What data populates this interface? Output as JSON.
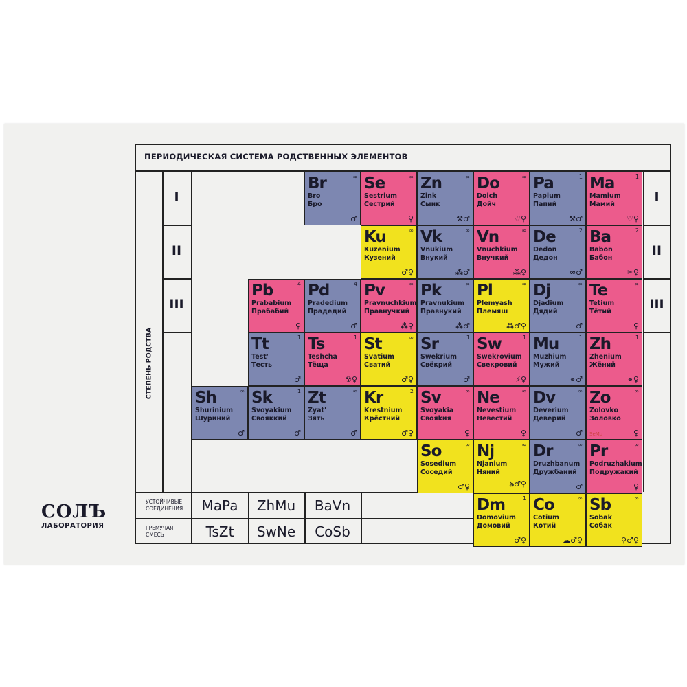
{
  "title": "ПЕРИОДИЧЕСКАЯ СИСТЕМА РОДСТВЕННЫХ ЭЛЕМЕНТОВ",
  "degree_label": "СТЕПЕНЬ РОДСТВА",
  "roman": [
    "I",
    "II",
    "III"
  ],
  "colors": {
    "blue": "#7d87b1",
    "pink": "#ec5b8c",
    "yellow": "#f1e21e"
  },
  "elements": [
    {
      "sym": "Br",
      "lat": "Bro",
      "cyr": "Бро",
      "num": "∞",
      "color": "blue",
      "row": 0,
      "col": 2,
      "icons": "♂"
    },
    {
      "sym": "Se",
      "lat": "Sestrium",
      "cyr": "Сестрий",
      "num": "∞",
      "color": "pink",
      "row": 0,
      "col": 3,
      "icons": "♀"
    },
    {
      "sym": "Zn",
      "lat": "Zink",
      "cyr": "Сынк",
      "num": "∞",
      "color": "blue",
      "row": 0,
      "col": 4,
      "icons": "⚒♂"
    },
    {
      "sym": "Do",
      "lat": "Doich",
      "cyr": "Дойч",
      "num": "∞",
      "color": "pink",
      "row": 0,
      "col": 5,
      "icons": "♡♀"
    },
    {
      "sym": "Pa",
      "lat": "Papium",
      "cyr": "Папий",
      "num": "1",
      "color": "blue",
      "row": 0,
      "col": 6,
      "icons": "⚒♂"
    },
    {
      "sym": "Ma",
      "lat": "Mamium",
      "cyr": "Мамий",
      "num": "1",
      "color": "pink",
      "row": 0,
      "col": 7,
      "icons": "♡♀"
    },
    {
      "sym": "Ku",
      "lat": "Kuzenium",
      "cyr": "Кузений",
      "num": "∞",
      "color": "yellow",
      "row": 1,
      "col": 3,
      "icons": "♂♀"
    },
    {
      "sym": "Vk",
      "lat": "Vnukium",
      "cyr": "Внукий",
      "num": "∞",
      "color": "blue",
      "row": 1,
      "col": 4,
      "icons": "⁂♂"
    },
    {
      "sym": "Vn",
      "lat": "Vnuchkium",
      "cyr": "Внучкий",
      "num": "∞",
      "color": "pink",
      "row": 1,
      "col": 5,
      "icons": "⁂♀"
    },
    {
      "sym": "De",
      "lat": "Dedon",
      "cyr": "Дедон",
      "num": "2",
      "color": "blue",
      "row": 1,
      "col": 6,
      "icons": "∞♂"
    },
    {
      "sym": "Ba",
      "lat": "Babon",
      "cyr": "Бабон",
      "num": "2",
      "color": "pink",
      "row": 1,
      "col": 7,
      "icons": "✂♀"
    },
    {
      "sym": "Pb",
      "lat": "Prababium",
      "cyr": "Прабабий",
      "num": "4",
      "color": "pink",
      "row": 2,
      "col": 1,
      "icons": "♀"
    },
    {
      "sym": "Pd",
      "lat": "Pradedium",
      "cyr": "Прадедий",
      "num": "4",
      "color": "blue",
      "row": 2,
      "col": 2,
      "icons": "♂"
    },
    {
      "sym": "Pv",
      "lat": "Pravnuchkium",
      "cyr": "Правнучкий",
      "num": "∞",
      "color": "pink",
      "row": 2,
      "col": 3,
      "icons": "⁂♀"
    },
    {
      "sym": "Pk",
      "lat": "Pravnukium",
      "cyr": "Правнукий",
      "num": "∞",
      "color": "blue",
      "row": 2,
      "col": 4,
      "icons": "⁂♂"
    },
    {
      "sym": "Pl",
      "lat": "Plemyash",
      "cyr": "Племяш",
      "num": "∞",
      "color": "yellow",
      "row": 2,
      "col": 5,
      "icons": "⁂♂♀"
    },
    {
      "sym": "Dj",
      "lat": "Djadium",
      "cyr": "Дядий",
      "num": "∞",
      "color": "blue",
      "row": 2,
      "col": 6,
      "icons": "♂"
    },
    {
      "sym": "Te",
      "lat": "Tetium",
      "cyr": "Тётий",
      "num": "∞",
      "color": "pink",
      "row": 2,
      "col": 7,
      "icons": "♀"
    },
    {
      "sym": "Tt",
      "lat": "Test'",
      "cyr": "Тесть",
      "num": "1",
      "color": "blue",
      "row": 3,
      "col": 1,
      "icons": "♂"
    },
    {
      "sym": "Ts",
      "lat": "Teshcha",
      "cyr": "Тёща",
      "num": "1",
      "color": "pink",
      "row": 3,
      "col": 2,
      "icons": "☢♀"
    },
    {
      "sym": "St",
      "lat": "Svatium",
      "cyr": "Сватий",
      "num": "∞",
      "color": "yellow",
      "row": 3,
      "col": 3,
      "icons": "♂♀"
    },
    {
      "sym": "Sr",
      "lat": "Swekrium",
      "cyr": "Свёкрий",
      "num": "1",
      "color": "blue",
      "row": 3,
      "col": 4,
      "icons": "♂"
    },
    {
      "sym": "Sw",
      "lat": "Swekrovium",
      "cyr": "Свекровий",
      "num": "1",
      "color": "pink",
      "row": 3,
      "col": 5,
      "icons": "⚡♀"
    },
    {
      "sym": "Mu",
      "lat": "Muzhium",
      "cyr": "Мужий",
      "num": "1",
      "color": "blue",
      "row": 3,
      "col": 6,
      "icons": "⚭♂"
    },
    {
      "sym": "Zh",
      "lat": "Zhenium",
      "cyr": "Жёний",
      "num": "1",
      "color": "pink",
      "row": 3,
      "col": 7,
      "icons": "⚭♀"
    },
    {
      "sym": "Sh",
      "lat": "Shurinium",
      "cyr": "Шуриний",
      "num": "∞",
      "color": "blue",
      "row": 4,
      "col": 0,
      "icons": "♂"
    },
    {
      "sym": "Sk",
      "lat": "Svoyakium",
      "cyr": "Свояккий",
      "num": "1",
      "color": "blue",
      "row": 4,
      "col": 1,
      "icons": "♂"
    },
    {
      "sym": "Zt",
      "lat": "Zyat'",
      "cyr": "Зять",
      "num": "∞",
      "color": "blue",
      "row": 4,
      "col": 2,
      "icons": "♂"
    },
    {
      "sym": "Kr",
      "lat": "Krestnium",
      "cyr": "Крёстний",
      "num": "2",
      "color": "yellow",
      "row": 4,
      "col": 3,
      "icons": "♂♀"
    },
    {
      "sym": "Sv",
      "lat": "Svoyakia",
      "cyr": "Свояkия",
      "num": "∞",
      "color": "pink",
      "row": 4,
      "col": 4,
      "icons": "♀"
    },
    {
      "sym": "Ne",
      "lat": "Nevestium",
      "cyr": "Невестий",
      "num": "∞",
      "color": "pink",
      "row": 4,
      "col": 5,
      "icons": "♀"
    },
    {
      "sym": "Dv",
      "lat": "Deverium",
      "cyr": "Деверий",
      "num": "∞",
      "color": "blue",
      "row": 4,
      "col": 6,
      "icons": "♂"
    },
    {
      "sym": "Zo",
      "lat": "Zolovko",
      "cyr": "Золовко",
      "num": "∞",
      "color": "pink",
      "row": 4,
      "col": 7,
      "icons": "♀",
      "note": "SeMu"
    },
    {
      "sym": "So",
      "lat": "Sosedium",
      "cyr": "Соседий",
      "num": "∞",
      "color": "yellow",
      "row": 5,
      "col": 4,
      "icons": "♂♀"
    },
    {
      "sym": "Nj",
      "lat": "Njanium",
      "cyr": "Няний",
      "num": "∞",
      "color": "yellow",
      "row": 5,
      "col": 5,
      "icons": "ঌ♂♀"
    },
    {
      "sym": "Dr",
      "lat": "Druzhbanum",
      "cyr": "Дружбаний",
      "num": "∞",
      "color": "blue",
      "row": 5,
      "col": 6,
      "icons": "♂"
    },
    {
      "sym": "Pr",
      "lat": "Podruzhakium",
      "cyr": "Подружакий",
      "num": "∞",
      "color": "pink",
      "row": 5,
      "col": 7,
      "icons": "♀"
    },
    {
      "sym": "Dm",
      "lat": "Domovium",
      "cyr": "Домовий",
      "num": "1",
      "color": "yellow",
      "row": 6,
      "col": 5,
      "icons": "♂♀"
    },
    {
      "sym": "Co",
      "lat": "Cotium",
      "cyr": "Котий",
      "num": "∞",
      "color": "yellow",
      "row": 6,
      "col": 6,
      "icons": "☁♂♀"
    },
    {
      "sym": "Sb",
      "lat": "Sobak",
      "cyr": "Собак",
      "num": "∞",
      "color": "yellow",
      "row": 6,
      "col": 7,
      "icons": "⚲♂♀"
    }
  ],
  "compounds": {
    "stable_label": "УСТОЙЧИВЫЕ СОЕДИНЕНИЯ",
    "stable": [
      "MaPa",
      "ZhMu",
      "BaVn"
    ],
    "explosive_label": "ГРЕМУЧАЯ СМЕСЬ",
    "explosive": [
      "TsZt",
      "SwNe",
      "CoSb"
    ]
  },
  "logo": {
    "main": "СОЛЪ",
    "sub": "ЛАБОРАТОРИЯ"
  }
}
